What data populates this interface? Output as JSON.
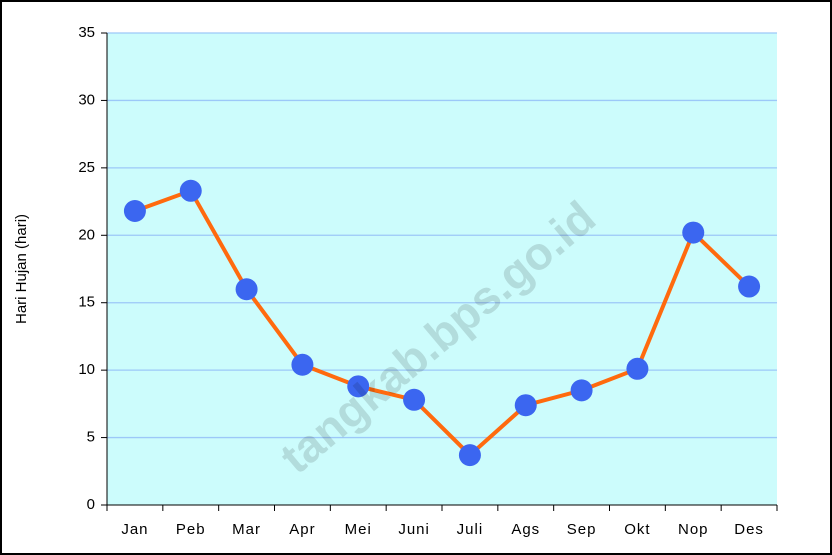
{
  "chart_data": {
    "type": "line",
    "y_label": "Hari Hujan (hari)",
    "categories": [
      "Jan",
      "Peb",
      "Mar",
      "Apr",
      "Mei",
      "Juni",
      "Juli",
      "Ags",
      "Sep",
      "Okt",
      "Nop",
      "Des"
    ],
    "series": [
      {
        "name": "Hari Hujan",
        "color": "#ff6a0e",
        "marker_color": "#3b66f0",
        "values": [
          21.8,
          23.3,
          16.0,
          10.4,
          8.8,
          7.8,
          3.7,
          7.4,
          8.5,
          10.1,
          20.2,
          16.2
        ]
      }
    ],
    "ylim": [
      0,
      35
    ],
    "yticks": [
      0,
      5,
      10,
      15,
      20,
      25,
      30,
      35
    ],
    "grid": true,
    "watermark": "tangkab.bps.go.id"
  }
}
